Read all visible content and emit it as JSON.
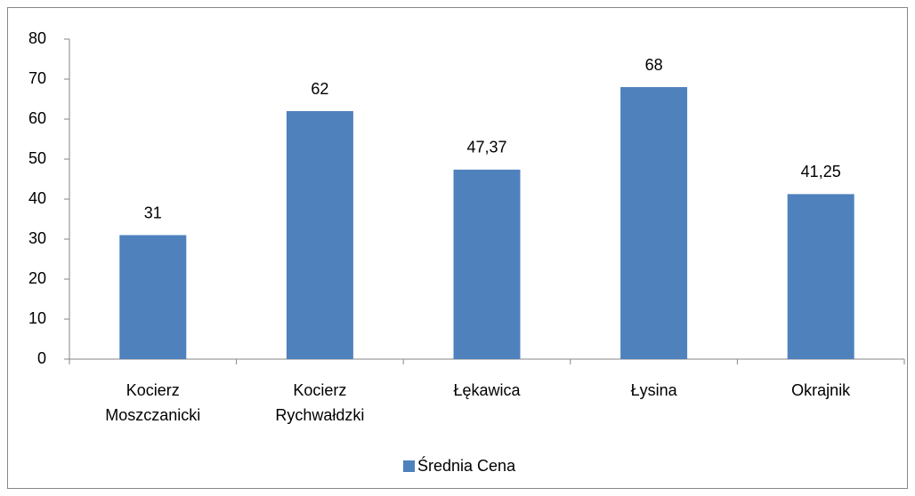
{
  "chart_data": {
    "type": "bar",
    "categories": [
      "Kocierz Moszczanicki",
      "Kocierz Rychwałdzki",
      "Łękawica",
      "Łysina",
      "Okrajnik"
    ],
    "series": [
      {
        "name": "Średnia Cena",
        "color": "#4f81bd",
        "values": [
          31,
          62,
          47.37,
          68,
          41.25
        ],
        "value_labels": [
          "31",
          "62",
          "47,37",
          "68",
          "41,25"
        ]
      }
    ],
    "ylim": [
      0,
      80
    ],
    "yticks": [
      0,
      10,
      20,
      30,
      40,
      50,
      60,
      70,
      80
    ],
    "grid": false,
    "legend": "bottom"
  }
}
